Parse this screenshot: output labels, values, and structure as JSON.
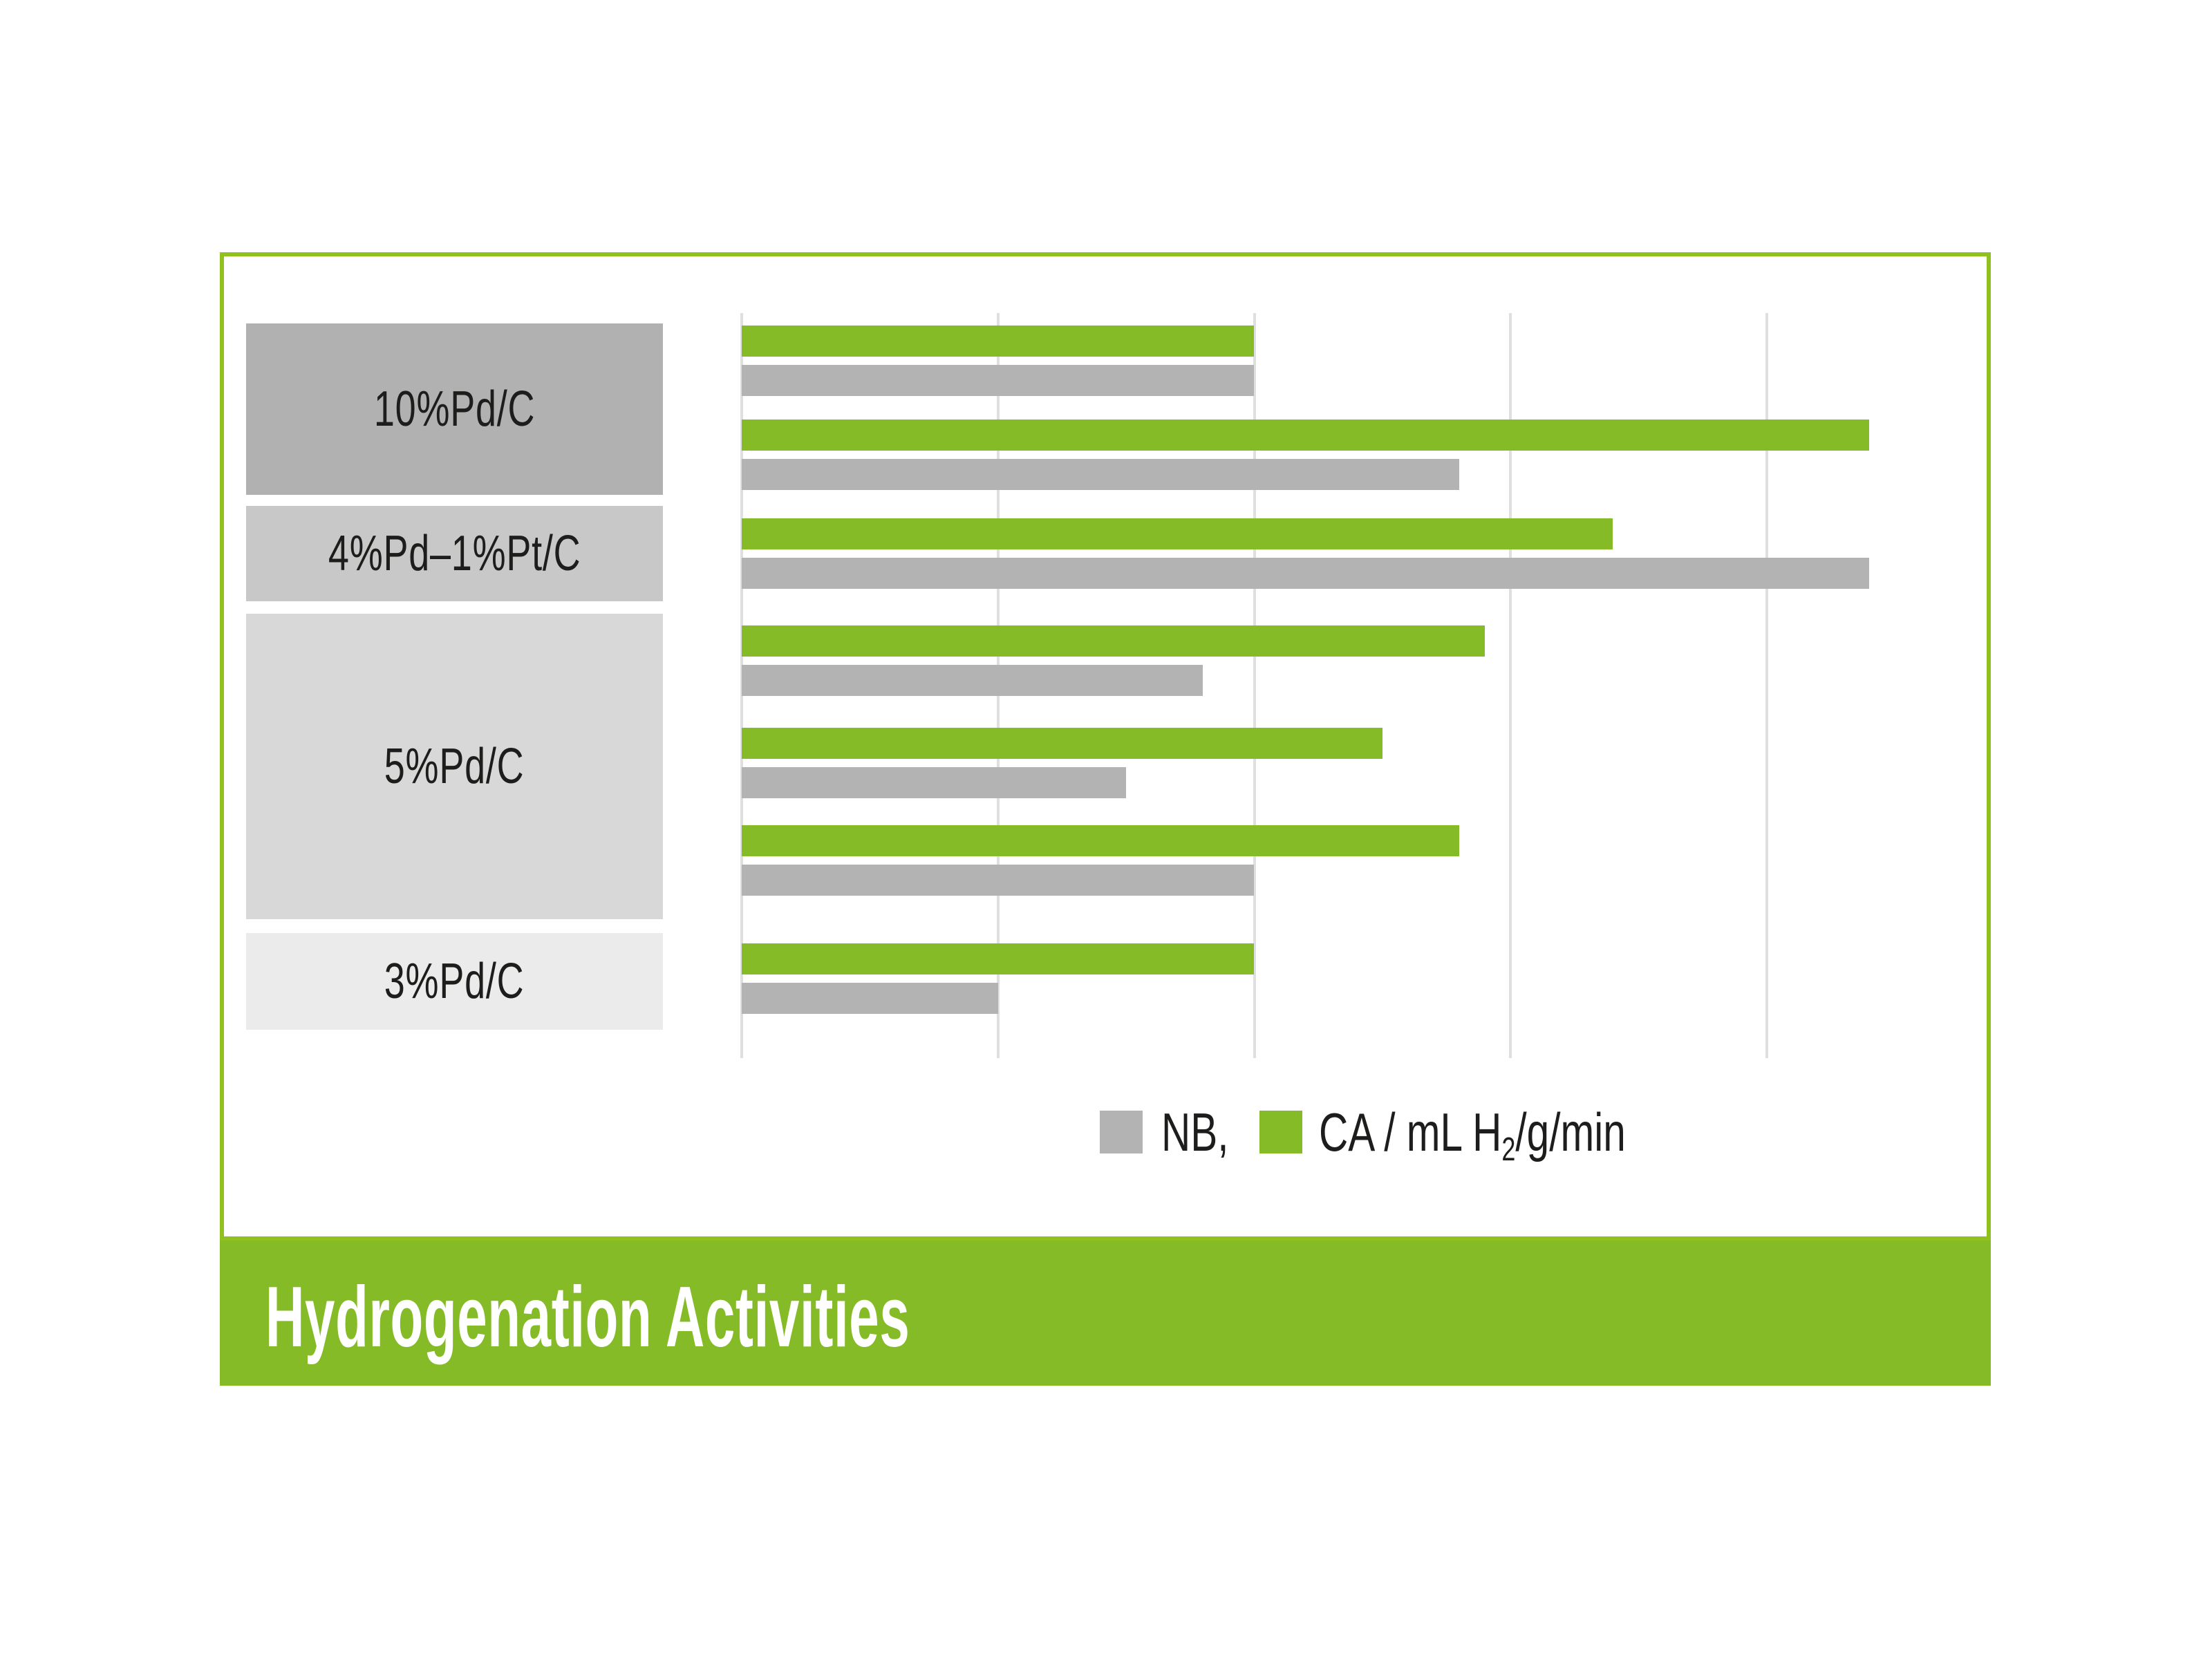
{
  "banner": {
    "title": "Hydrogenation Activities"
  },
  "legend": {
    "nb_label": "NB,",
    "ca_label_pre": "CA / mL H",
    "ca_sub": "2",
    "ca_label_post": "/g/min"
  },
  "colors": {
    "green": "#84BB27",
    "border_green": "#90C11E",
    "banner_green": "#84BB27",
    "bar_gray": "#B3B3B3",
    "gridline": "#DFDFDF",
    "text_dark": "#1D1D1B",
    "title_white": "#FFFFFF",
    "box_shades": [
      "#B1B1B1",
      "#C8C8C8",
      "#D8D8D8",
      "#EBEBEB"
    ]
  },
  "chart_data": {
    "type": "bar",
    "orientation": "horizontal",
    "title": "Hydrogenation Activities",
    "value_unit": "mL H2/g/min",
    "legend": [
      {
        "name": "NB",
        "color": "#B3B3B3"
      },
      {
        "name": "CA / mL H₂/g/min",
        "color": "#84BB27"
      }
    ],
    "axis": {
      "tick_labels": [],
      "gridline_values": [
        0,
        10,
        20,
        30,
        40
      ],
      "xlim": [
        0,
        48.7
      ],
      "grid": true
    },
    "groups": [
      {
        "label": "10%Pd/C",
        "pairs": [
          {
            "CA": 20,
            "NB": 20
          },
          {
            "CA": 44,
            "NB": 28
          }
        ]
      },
      {
        "label": "4%Pd–1%Pt/C",
        "pairs": [
          {
            "CA": 34,
            "NB": 44
          }
        ]
      },
      {
        "label": "5%Pd/C",
        "pairs": [
          {
            "CA": 29,
            "NB": 18
          },
          {
            "CA": 25,
            "NB": 15
          },
          {
            "CA": 28,
            "NB": 20
          }
        ]
      },
      {
        "label": "3%Pd/C",
        "pairs": [
          {
            "CA": 20,
            "NB": 10
          }
        ]
      }
    ]
  }
}
